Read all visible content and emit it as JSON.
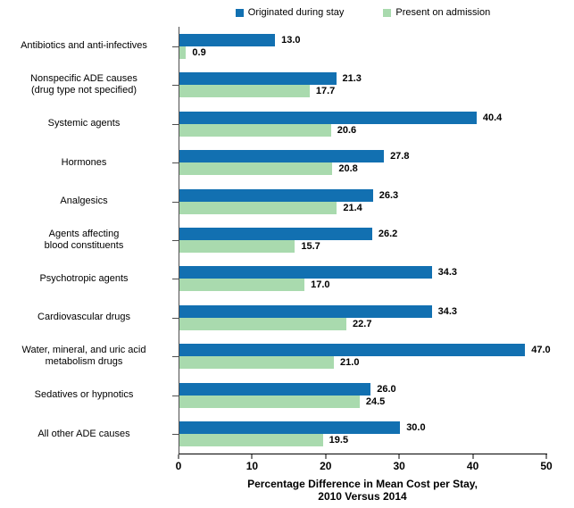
{
  "chart_data": {
    "type": "bar",
    "orientation": "horizontal",
    "title": "",
    "categories": [
      "Antibiotics and anti-infectives",
      "Nonspecific ADE causes\n(drug type not specified)",
      "Systemic agents",
      "Hormones",
      "Analgesics",
      "Agents affecting\nblood constituents",
      "Psychotropic agents",
      "Cardiovascular drugs",
      "Water, mineral, and uric acid\nmetabolism drugs",
      "Sedatives or hypnotics",
      "All other ADE causes"
    ],
    "series": [
      {
        "name": "Originated during stay",
        "color": "#1270B1",
        "values": [
          13.0,
          21.3,
          40.4,
          27.8,
          26.3,
          26.2,
          34.3,
          34.3,
          47.0,
          26.0,
          30.0
        ]
      },
      {
        "name": "Present on admission",
        "color": "#A9DAAE",
        "values": [
          0.9,
          17.7,
          20.6,
          20.8,
          21.4,
          15.7,
          17.0,
          22.7,
          21.0,
          24.5,
          19.5
        ]
      }
    ],
    "xlabel": "Percentage Difference in Mean Cost per Stay,\n2010 Versus 2014",
    "ylabel": "",
    "xlim": [
      0,
      50
    ],
    "xticks": [
      0,
      10,
      20,
      30,
      40,
      50
    ],
    "grid": false,
    "legend_position": "top",
    "value_labels": true,
    "value_label_format": "one-decimal"
  }
}
